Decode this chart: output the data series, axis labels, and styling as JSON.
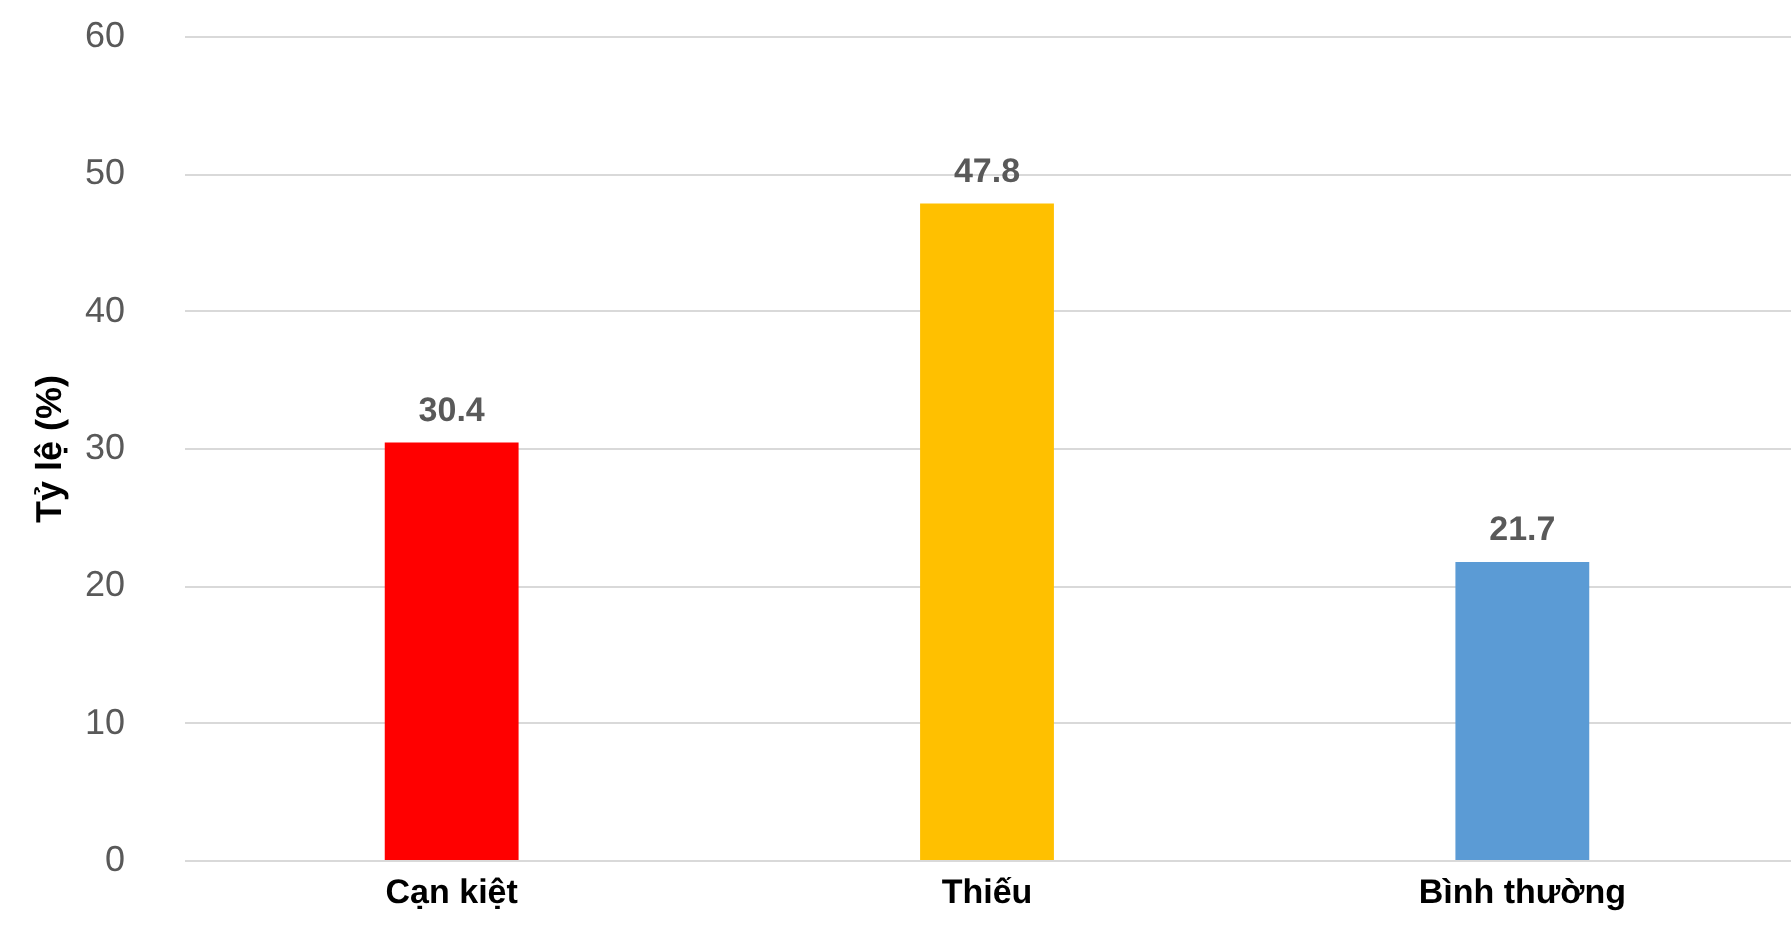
{
  "chart_data": {
    "type": "bar",
    "ylabel": "Tỷ lệ (%)",
    "categories": [
      "Cạn kiệt",
      "Thiếu",
      "Bình thường"
    ],
    "values": [
      30.4,
      47.8,
      21.7
    ],
    "colors": [
      "#ff0000",
      "#ffc000",
      "#5b9bd5"
    ],
    "ylim": [
      0,
      60
    ],
    "yticks": [
      0,
      10,
      20,
      30,
      40,
      50,
      60
    ],
    "grid": "y",
    "data_labels": true
  }
}
